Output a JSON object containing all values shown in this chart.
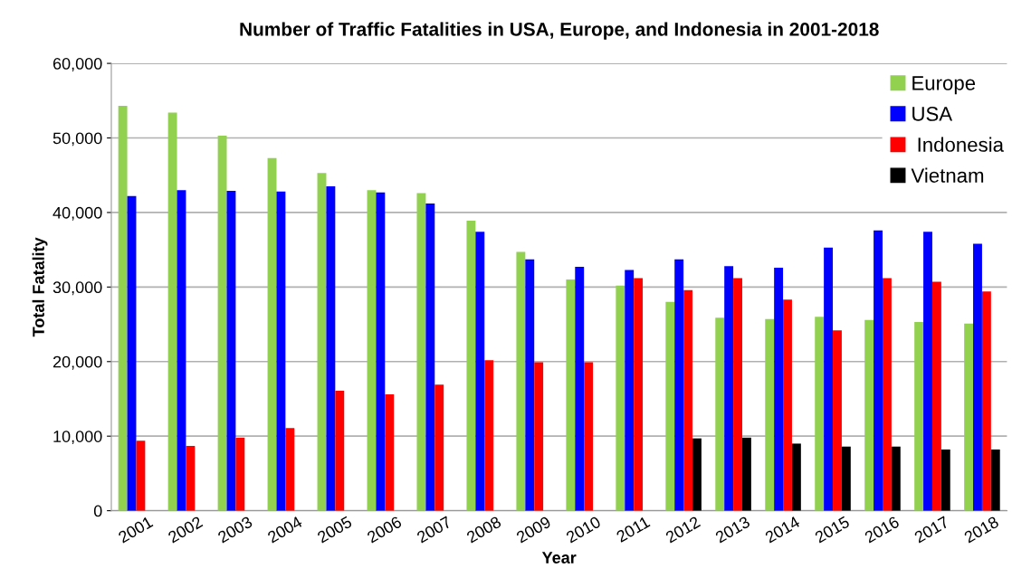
{
  "chart_data": {
    "type": "bar",
    "title": "Number of Traffic Fatalities in USA, Europe, and Indonesia in 2001-2018",
    "xlabel": "Year",
    "ylabel": "Total Fatality",
    "categories": [
      "2001",
      "2002",
      "2003",
      "2004",
      "2005",
      "2006",
      "2007",
      "2008",
      "2009",
      "2010",
      "2011",
      "2012",
      "2013",
      "2014",
      "2015",
      "2016",
      "2017",
      "2018"
    ],
    "series": [
      {
        "name": "Europe",
        "color": "#92d050",
        "values": [
          54300,
          53400,
          50300,
          47300,
          45300,
          43000,
          42600,
          38900,
          34700,
          31000,
          30200,
          28000,
          25900,
          25700,
          26000,
          25600,
          25300,
          25100
        ]
      },
      {
        "name": "USA",
        "color": "#0000ff",
        "values": [
          42200,
          43000,
          42900,
          42800,
          43500,
          42700,
          41200,
          37400,
          33700,
          32700,
          32300,
          33700,
          32800,
          32600,
          35300,
          37600,
          37400,
          35800
        ]
      },
      {
        "name": " Indonesia",
        "color": "#ff0000",
        "values": [
          9400,
          8700,
          9800,
          11100,
          16100,
          15600,
          16900,
          20200,
          19900,
          19900,
          31200,
          29600,
          31200,
          28300,
          24200,
          31200,
          30700,
          29400
        ]
      },
      {
        "name": "Vietnam",
        "color": "#000000",
        "values": [
          null,
          null,
          null,
          null,
          null,
          null,
          null,
          null,
          null,
          null,
          null,
          9700,
          9800,
          9000,
          8600,
          8600,
          8200,
          8200
        ]
      }
    ],
    "ylim": [
      0,
      60000
    ],
    "yticks": [
      {
        "value": 0,
        "label": "0"
      },
      {
        "value": 10000,
        "label": "10,000"
      },
      {
        "value": 20000,
        "label": "20,000"
      },
      {
        "value": 30000,
        "label": "30,000"
      },
      {
        "value": 40000,
        "label": "40,000"
      },
      {
        "value": 50000,
        "label": "50,000"
      },
      {
        "value": 60000,
        "label": "60,000"
      }
    ],
    "grid": "y",
    "legend": "top right"
  }
}
